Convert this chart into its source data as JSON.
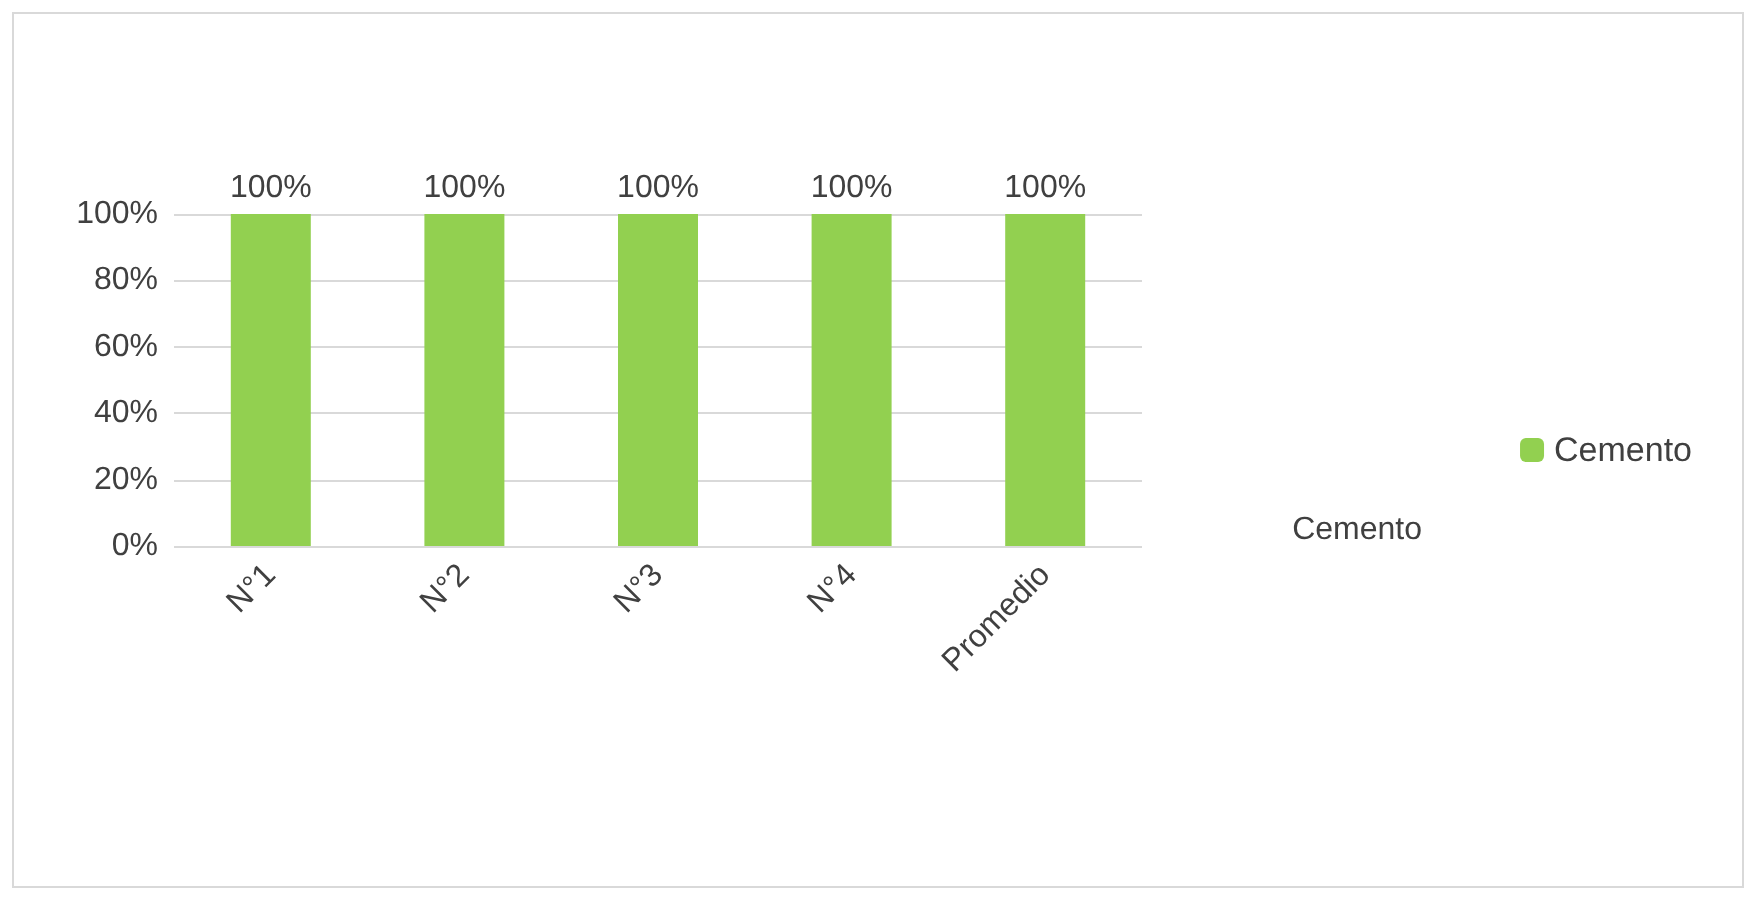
{
  "chart_data": {
    "type": "bar",
    "categories": [
      "N°1",
      "N°2",
      "N°3",
      "N°4",
      "Promedio"
    ],
    "series": [
      {
        "name": "Cemento",
        "color": "#92d050",
        "values": [
          100,
          100,
          100,
          100,
          100
        ],
        "value_labels": [
          "100%",
          "100%",
          "100%",
          "100%",
          "100%"
        ]
      }
    ],
    "ylim": [
      0,
      100
    ],
    "yticks": [
      {
        "value": 0,
        "label": "0%"
      },
      {
        "value": 20,
        "label": "20%"
      },
      {
        "value": 40,
        "label": "40%"
      },
      {
        "value": 60,
        "label": "60%"
      },
      {
        "value": 80,
        "label": "80%"
      },
      {
        "value": 100,
        "label": "100%"
      }
    ],
    "grid": "y",
    "legend": "right",
    "annotations": [
      "Cemento"
    ]
  }
}
